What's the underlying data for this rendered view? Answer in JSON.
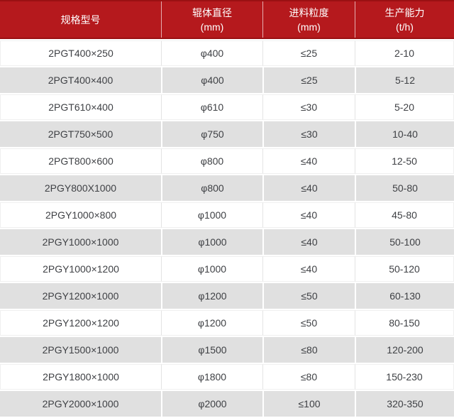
{
  "colors": {
    "header_background": "#b5191d",
    "header_border": "#9a1013",
    "header_text": "#ffffff",
    "row_gray": "#e0e0e0",
    "row_white": "#ffffff",
    "body_text": "#3f4145"
  },
  "chart_data": {
    "type": "table",
    "columns": [
      {
        "label": "规格型号",
        "unit": ""
      },
      {
        "label": "辊体直径",
        "unit": "(mm)"
      },
      {
        "label": "进料粒度",
        "unit": "(mm)"
      },
      {
        "label": "生产能力",
        "unit": "(t/h)"
      }
    ],
    "rows": [
      [
        "2PGT400×250",
        "φ400",
        "≤25",
        "2-10"
      ],
      [
        "2PGT400×400",
        "φ400",
        "≤25",
        "5-12"
      ],
      [
        "2PGT610×400",
        "φ610",
        "≤30",
        "5-20"
      ],
      [
        "2PGT750×500",
        "φ750",
        "≤30",
        "10-40"
      ],
      [
        "2PGT800×600",
        "φ800",
        "≤40",
        "12-50"
      ],
      [
        "2PGY800X1000",
        "φ800",
        "≤40",
        "50-80"
      ],
      [
        "2PGY1000×800",
        "φ1000",
        "≤40",
        "45-80"
      ],
      [
        "2PGY1000×1000",
        "φ1000",
        "≤40",
        "50-100"
      ],
      [
        "2PGY1000×1200",
        "φ1000",
        "≤40",
        "50-120"
      ],
      [
        "2PGY1200×1000",
        "φ1200",
        "≤50",
        "60-130"
      ],
      [
        "2PGY1200×1200",
        "φ1200",
        "≤50",
        "80-150"
      ],
      [
        "2PGY1500×1000",
        "φ1500",
        "≤80",
        "120-200"
      ],
      [
        "2PGY1800×1000",
        "φ1800",
        "≤80",
        "150-230"
      ],
      [
        "2PGY2000×1000",
        "φ2000",
        "≤100",
        "320-350"
      ]
    ]
  }
}
